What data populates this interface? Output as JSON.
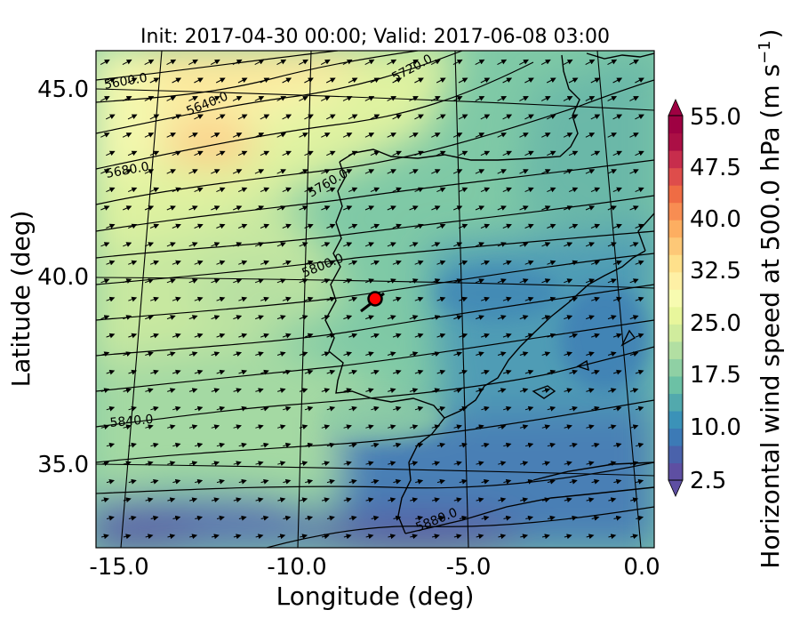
{
  "title": "Init: 2017-04-30 00:00; Valid: 2017-06-08 03:00",
  "xlabel": "Longitude (deg)",
  "ylabel": "Latitude (deg)",
  "x_ticks": [
    "-15.0",
    "-10.0",
    "-5.0",
    "0.0"
  ],
  "y_ticks": [
    "45.0",
    "40.0",
    "35.0"
  ],
  "colorbar": {
    "label": "Horizontal wind speed at 500.0 hPa (m s",
    "label_sup": "−1",
    "label_close": ")",
    "tick_labels": [
      "55.0",
      "47.5",
      "40.0",
      "32.5",
      "25.0",
      "17.5",
      "10.0",
      "2.5"
    ],
    "colors": [
      "#5e4fa2",
      "#4a62ab",
      "#3c7ab6",
      "#3b92b8",
      "#52a9ad",
      "#6cc1a5",
      "#8fd0a4",
      "#b2dfa2",
      "#d0ec9d",
      "#e8f69c",
      "#f7fbb0",
      "#fef0a5",
      "#fee08b",
      "#fdc877",
      "#fdae61",
      "#f88d52",
      "#ef6c44",
      "#de4d4b",
      "#c72d4c",
      "#ab0f45",
      "#9e0142"
    ],
    "min_color": "#5e4fa2",
    "max_color": "#9e0142"
  },
  "contour_labels": [
    "5600.0",
    "5640.0",
    "5680.0",
    "5720.0",
    "5760.0",
    "5800.0",
    "5840.0",
    "5880.0"
  ],
  "marker": {
    "color": "#ff0000",
    "lon": -7.8,
    "lat": 39.3
  },
  "chart_data": {
    "type": "heatmap",
    "title": "Init: 2017-04-30 00:00; Valid: 2017-06-08 03:00",
    "xlabel": "Longitude (deg)",
    "ylabel": "Latitude (deg)",
    "xlim": [
      -16.0,
      0.2
    ],
    "ylim": [
      32.5,
      46.0
    ],
    "colorbar_range": [
      2.5,
      55.0
    ],
    "colorbar_step": 2.5,
    "variable": "Horizontal wind speed at 500.0 hPa",
    "units": "m s-1",
    "contour_levels": [
      5600.0,
      5640.0,
      5680.0,
      5720.0,
      5760.0,
      5800.0,
      5840.0,
      5880.0
    ],
    "wind_direction": "westerly to south-westerly",
    "colormap": "Spectral_r"
  }
}
